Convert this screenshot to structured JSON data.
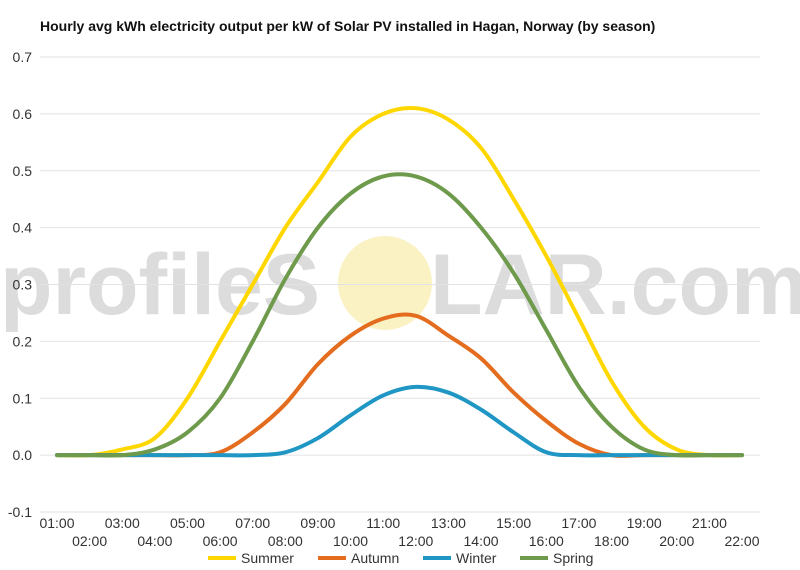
{
  "chart_data": {
    "type": "line",
    "title": "Hourly avg kWh electricity output per kW of Solar PV installed in Hagan, Norway (by season)",
    "xlabel": "",
    "ylabel": "",
    "categories": [
      "01:00",
      "02:00",
      "03:00",
      "04:00",
      "05:00",
      "06:00",
      "07:00",
      "08:00",
      "09:00",
      "10:00",
      "11:00",
      "12:00",
      "13:00",
      "14:00",
      "15:00",
      "16:00",
      "17:00",
      "18:00",
      "19:00",
      "20:00",
      "21:00",
      "22:00"
    ],
    "x_tick_labels": [
      "01:00",
      "02:00",
      "03:00",
      "04:00",
      "05:00",
      "06:00",
      "07:00",
      "08:00",
      "09:00",
      "10:00",
      "11:00",
      "12:00",
      "13:00",
      "14:00",
      "15:00",
      "16:00",
      "17:00",
      "18:00",
      "19:00",
      "20:00",
      "21:00",
      "22:00"
    ],
    "ylim": [
      -0.1,
      0.7
    ],
    "y_ticks": [
      -0.1,
      0.0,
      0.1,
      0.2,
      0.3,
      0.4,
      0.5,
      0.6,
      0.7
    ],
    "y_tick_labels": [
      "-0.1",
      "0.0",
      "0.1",
      "0.2",
      "0.3",
      "0.4",
      "0.5",
      "0.6",
      "0.7"
    ],
    "grid": true,
    "legend": "bottom",
    "watermark": {
      "left": "profileS",
      "right": "LAR.com"
    },
    "series": [
      {
        "name": "Summer",
        "color": "#FFD700",
        "values": [
          0.0,
          0.0,
          0.01,
          0.03,
          0.1,
          0.2,
          0.3,
          0.4,
          0.48,
          0.56,
          0.6,
          0.61,
          0.59,
          0.54,
          0.45,
          0.35,
          0.24,
          0.13,
          0.05,
          0.01,
          0.0,
          0.0
        ]
      },
      {
        "name": "Autumn",
        "color": "#E36C1E",
        "values": [
          0.0,
          0.0,
          0.0,
          0.0,
          0.0,
          0.005,
          0.04,
          0.09,
          0.16,
          0.21,
          0.24,
          0.245,
          0.21,
          0.17,
          0.11,
          0.06,
          0.02,
          0.0,
          0.0,
          0.0,
          0.0,
          0.0
        ]
      },
      {
        "name": "Winter",
        "color": "#1F96C4",
        "values": [
          0.0,
          0.0,
          0.0,
          0.0,
          0.0,
          0.0,
          0.0,
          0.005,
          0.03,
          0.07,
          0.105,
          0.12,
          0.11,
          0.08,
          0.04,
          0.005,
          0.0,
          0.0,
          0.0,
          0.0,
          0.0,
          0.0
        ]
      },
      {
        "name": "Spring",
        "color": "#6E9A4C",
        "values": [
          0.0,
          0.0,
          0.0,
          0.01,
          0.04,
          0.1,
          0.2,
          0.31,
          0.4,
          0.46,
          0.49,
          0.49,
          0.46,
          0.4,
          0.32,
          0.22,
          0.12,
          0.05,
          0.01,
          0.0,
          0.0,
          0.0
        ]
      }
    ]
  }
}
